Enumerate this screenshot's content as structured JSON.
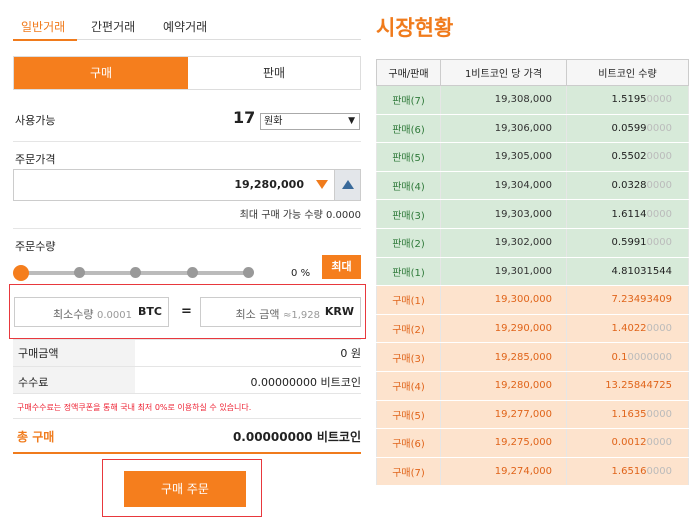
{
  "tabs": [
    {
      "label": "일반거래",
      "active": true
    },
    {
      "label": "간편거래",
      "active": false
    },
    {
      "label": "예약거래",
      "active": false
    }
  ],
  "switch": {
    "buy": "구매",
    "sell": "판매"
  },
  "available": {
    "label": "사용가능",
    "value": "17",
    "currency": "원화"
  },
  "price": {
    "label": "주문가격",
    "value": "19,280,000",
    "max_label": "최대 구매 가능 수량",
    "max_value": "0.0000"
  },
  "quantity": {
    "label": "주문수량",
    "percent": "0",
    "percent_unit": "%",
    "max_button": "최대"
  },
  "minimums": {
    "qty_label": "최소수량",
    "qty_value": "0.0001",
    "qty_unit": "BTC",
    "eq": "=",
    "amt_label": "최소 금액",
    "amt_value": "≈1,928",
    "amt_unit": "KRW"
  },
  "summary": {
    "amount_label": "구매금액",
    "amount_value": "0 원",
    "fee_label": "수수료",
    "fee_value": "0.00000000 비트코인",
    "notice": "구매수수료는 정액쿠폰을 통해 국내 최저 0%로 이용하실 수 있습니다.",
    "total_label": "총 구매",
    "total_value": "0.00000000 비트코인"
  },
  "order_button": "구매 주문",
  "market": {
    "title": "시장현황",
    "headers": [
      "구매/판매",
      "1비트코인 당 가격",
      "비트코인 수량"
    ],
    "rows": [
      {
        "type": "sell",
        "label": "판매(7)",
        "price": "19,308,000",
        "qty_main": "1.5195",
        "qty_tail": "0000"
      },
      {
        "type": "sell",
        "label": "판매(6)",
        "price": "19,306,000",
        "qty_main": "0.0599",
        "qty_tail": "0000"
      },
      {
        "type": "sell",
        "label": "판매(5)",
        "price": "19,305,000",
        "qty_main": "0.5502",
        "qty_tail": "0000"
      },
      {
        "type": "sell",
        "label": "판매(4)",
        "price": "19,304,000",
        "qty_main": "0.0328",
        "qty_tail": "0000"
      },
      {
        "type": "sell",
        "label": "판매(3)",
        "price": "19,303,000",
        "qty_main": "1.6114",
        "qty_tail": "0000"
      },
      {
        "type": "sell",
        "label": "판매(2)",
        "price": "19,302,000",
        "qty_main": "0.5991",
        "qty_tail": "0000"
      },
      {
        "type": "sell",
        "label": "판매(1)",
        "price": "19,301,000",
        "qty_main": "4.81031544",
        "qty_tail": ""
      },
      {
        "type": "buy",
        "label": "구매(1)",
        "price": "19,300,000",
        "qty_main": "7.23493409",
        "qty_tail": ""
      },
      {
        "type": "buy",
        "label": "구매(2)",
        "price": "19,290,000",
        "qty_main": "1.4022",
        "qty_tail": "0000"
      },
      {
        "type": "buy",
        "label": "구매(3)",
        "price": "19,285,000",
        "qty_main": "0.1",
        "qty_tail": "0000000"
      },
      {
        "type": "buy",
        "label": "구매(4)",
        "price": "19,280,000",
        "qty_main": "13.25844725",
        "qty_tail": ""
      },
      {
        "type": "buy",
        "label": "구매(5)",
        "price": "19,277,000",
        "qty_main": "1.1635",
        "qty_tail": "0000"
      },
      {
        "type": "buy",
        "label": "구매(6)",
        "price": "19,275,000",
        "qty_main": "0.0012",
        "qty_tail": "0000"
      },
      {
        "type": "buy",
        "label": "구매(7)",
        "price": "19,274,000",
        "qty_main": "1.6516",
        "qty_tail": "0000"
      }
    ]
  },
  "colors": {
    "accent": "#f57e1d",
    "sell_bg": "#d7ead9",
    "buy_bg": "#fde3cd",
    "highlight": "#e8383d"
  }
}
